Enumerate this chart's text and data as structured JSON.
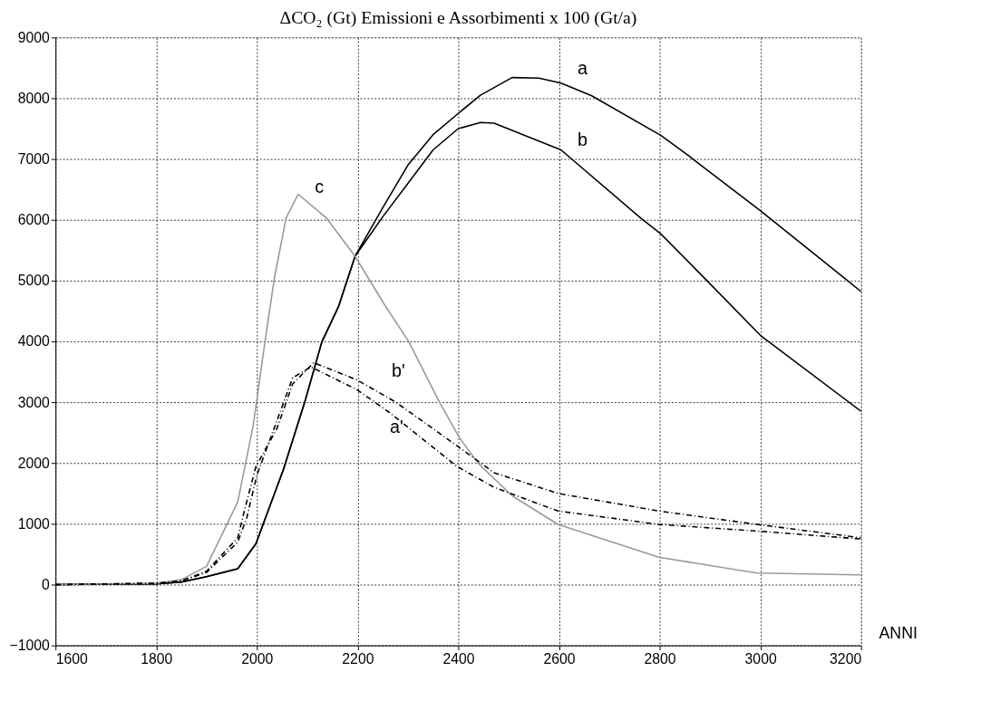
{
  "chart_data": {
    "type": "line",
    "title": "ΔCO₂  (Gt)       Emissioni e Assorbimenti  x 100 (Gt/a)",
    "xlabel": "ANNI",
    "xlim": [
      1600,
      3200
    ],
    "ylim": [
      -1000,
      9000
    ],
    "xticks": [
      1600,
      1800,
      2000,
      2200,
      2400,
      2600,
      2800,
      3000,
      3200
    ],
    "yticks": [
      -1000,
      0,
      1000,
      2000,
      3000,
      4000,
      5000,
      6000,
      7000,
      8000,
      9000
    ],
    "grid": true,
    "line_style": "solid",
    "series": [
      {
        "color": "#000000",
        "x": [
          1600,
          1800,
          1850,
          1900,
          1962,
          1998,
          2053,
          2095,
          2129,
          2162,
          2195,
          2250,
          2300,
          2350,
          2400,
          2444,
          2507,
          2560,
          2604,
          2665,
          2802,
          2858,
          3000,
          3167,
          3200
        ],
        "values": [
          0,
          10,
          40,
          130,
          260,
          670,
          1900,
          3000,
          3990,
          4570,
          5400,
          6200,
          6900,
          7400,
          7750,
          8050,
          8340,
          8330,
          8250,
          8040,
          7390,
          7050,
          6150,
          5040,
          4820
        ]
      },
      {
        "color": "#000000",
        "x": [
          1600,
          1800,
          1850,
          1900,
          1962,
          1998,
          2053,
          2095,
          2129,
          2162,
          2195,
          2250,
          2300,
          2350,
          2400,
          2444,
          2471,
          2604,
          2762,
          2802,
          2889,
          3000,
          3200
        ],
        "values": [
          0,
          10,
          40,
          130,
          260,
          670,
          1900,
          3000,
          3990,
          4570,
          5400,
          6050,
          6600,
          7150,
          7500,
          7600,
          7590,
          7150,
          6030,
          5770,
          5040,
          4100,
          2850
        ]
      },
      {
        "color": "#999999",
        "x": [
          1600,
          1800,
          1850,
          1900,
          1962,
          1993,
          2016,
          2035,
          2058,
          2082,
          2138,
          2195,
          2253,
          2302,
          2362,
          2402,
          2440,
          2507,
          2598,
          2798,
          2993,
          3193,
          3200
        ],
        "values": [
          0,
          20,
          80,
          300,
          1360,
          2630,
          3990,
          5050,
          6030,
          6420,
          6030,
          5400,
          4610,
          3990,
          3010,
          2420,
          1990,
          1460,
          990,
          450,
          190,
          160,
          160
        ]
      },
      {
        "color": "#000000",
        "line_style": "dashed",
        "x": [
          1600,
          1800,
          1850,
          1900,
          1962,
          1975,
          1998,
          2040,
          2071,
          2113,
          2198,
          2276,
          2398,
          2471,
          2598,
          2798,
          2993,
          3200
        ],
        "values": [
          0,
          20,
          60,
          220,
          770,
          1210,
          1940,
          2570,
          3300,
          3650,
          3370,
          3000,
          2280,
          1840,
          1500,
          1210,
          990,
          770
        ]
      },
      {
        "color": "#000000",
        "line_style": "dashed",
        "x": [
          1600,
          1800,
          1850,
          1900,
          1962,
          1980,
          2000,
          2040,
          2071,
          2107,
          2198,
          2265,
          2398,
          2471,
          2598,
          2798,
          2993,
          3200
        ],
        "values": [
          0,
          20,
          60,
          200,
          700,
          1100,
          1800,
          2700,
          3400,
          3580,
          3210,
          2820,
          1940,
          1600,
          1210,
          990,
          880,
          750
        ]
      }
    ],
    "annotations": [
      "a",
      "b",
      "c",
      "b'",
      "a'"
    ]
  }
}
